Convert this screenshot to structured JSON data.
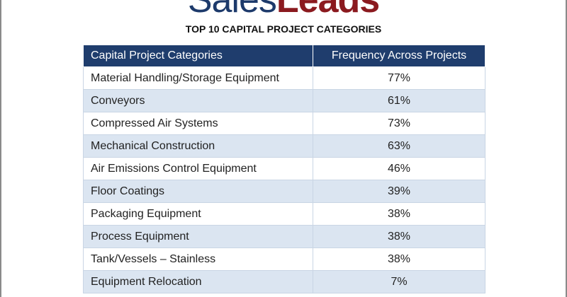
{
  "header": {
    "logo_first": "Sales",
    "logo_second": "Leads",
    "title": "TOP 10 CAPITAL PROJECT CATEGORIES"
  },
  "table": {
    "columns": [
      "Capital Project Categories",
      "Frequency Across Projects"
    ],
    "rows": [
      [
        "Material Handling/Storage Equipment",
        "77%"
      ],
      [
        "Conveyors",
        "61%"
      ],
      [
        "Compressed Air Systems",
        "73%"
      ],
      [
        "Mechanical Construction",
        "63%"
      ],
      [
        "Air Emissions Control Equipment",
        "46%"
      ],
      [
        "Floor Coatings",
        "39%"
      ],
      [
        "Packaging Equipment",
        "38%"
      ],
      [
        "Process Equipment",
        "38%"
      ],
      [
        "Tank/Vessels – Stainless",
        "38%"
      ],
      [
        "Equipment Relocation",
        "7%"
      ]
    ]
  }
}
